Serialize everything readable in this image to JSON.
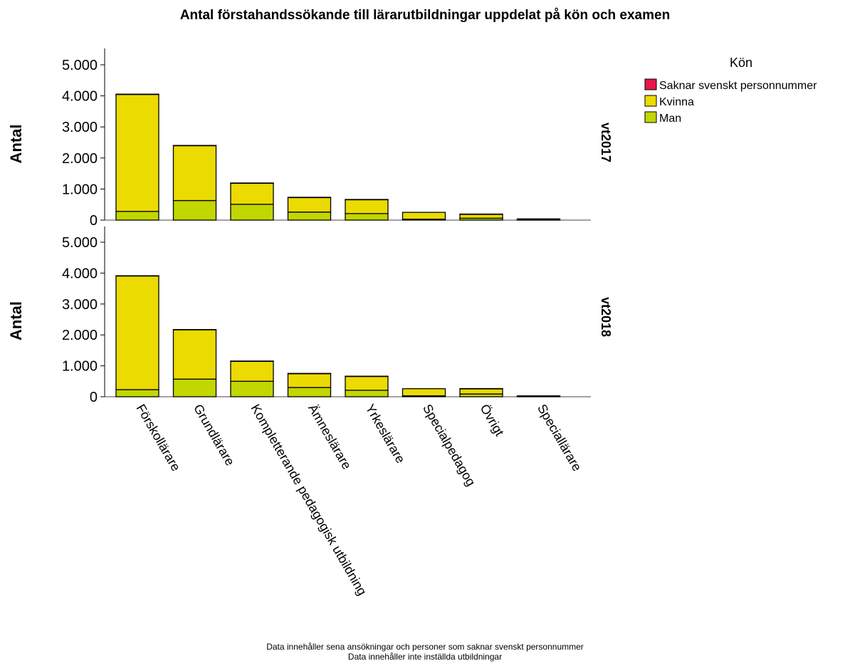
{
  "chart_data": {
    "type": "bar",
    "stacked": true,
    "title": "Antal förstahandssökande till lärarutbildningar uppdelat på kön och examen",
    "ylabel": "Antal",
    "ylim": [
      0,
      5000
    ],
    "yticks": [
      "0",
      "1.000",
      "2.000",
      "3.000",
      "4.000",
      "5.000"
    ],
    "categories": [
      "Förskollärare",
      "Grundlärare",
      "Kompletterande pedagogisk utbildning",
      "Ämneslärare",
      "Yrkeslärare",
      "Specialpedagog",
      "Övrigt",
      "Speciallärare"
    ],
    "legend": {
      "title": "Kön",
      "placement": "right",
      "entries": [
        {
          "name": "Saknar svenskt personnummer",
          "color": "#e8174a"
        },
        {
          "name": "Kvinna",
          "color": "#ebdb00"
        },
        {
          "name": "Man",
          "color": "#c2d600"
        }
      ]
    },
    "panels": [
      {
        "label": "vt2017",
        "series": [
          {
            "name": "Man",
            "values": [
              280,
              630,
              510,
              260,
              210,
              30,
              60,
              10
            ]
          },
          {
            "name": "Kvinna",
            "values": [
              3770,
              1770,
              680,
              470,
              450,
              220,
              130,
              30
            ]
          },
          {
            "name": "Saknar svenskt personnummer",
            "values": [
              5,
              5,
              5,
              5,
              5,
              0,
              5,
              0
            ]
          }
        ]
      },
      {
        "label": "vt2018",
        "series": [
          {
            "name": "Man",
            "values": [
              230,
              570,
              500,
              300,
              210,
              30,
              90,
              10
            ]
          },
          {
            "name": "Kvinna",
            "values": [
              3680,
              1600,
              650,
              450,
              450,
              230,
              170,
              20
            ]
          },
          {
            "name": "Saknar svenskt personnummer",
            "values": [
              5,
              5,
              5,
              5,
              5,
              0,
              5,
              0
            ]
          }
        ]
      }
    ],
    "footnotes": [
      "Data innehåller sena ansökningar och personer som saknar svenskt personnummer",
      "Data innehåller inte inställda utbildningar"
    ]
  }
}
